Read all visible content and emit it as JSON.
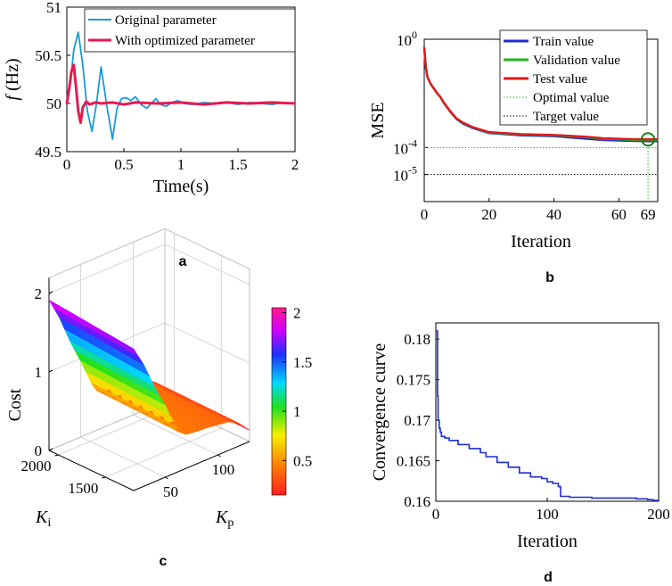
{
  "figure": {
    "panel_labels": [
      "a",
      "b",
      "c",
      "d"
    ]
  },
  "chart_data": [
    {
      "id": "a",
      "type": "line",
      "xlabel": "Time(s)",
      "ylabel_symbol": "f",
      "ylabel_unit": "(Hz)",
      "xlim": [
        0,
        2
      ],
      "ylim": [
        49.5,
        51
      ],
      "xticks": [
        "0",
        "0.5",
        "1",
        "1.5",
        "2"
      ],
      "yticks": [
        "49.5",
        "50",
        "50.5",
        "51"
      ],
      "legend": [
        "Original parameter",
        "With optimized parameter"
      ],
      "series": [
        {
          "name": "Original parameter",
          "color": "#1a9ad6",
          "x": [
            0,
            0.03,
            0.06,
            0.1,
            0.14,
            0.18,
            0.22,
            0.26,
            0.3,
            0.35,
            0.4,
            0.44,
            0.48,
            0.52,
            0.56,
            0.6,
            0.65,
            0.7,
            0.74,
            0.78,
            0.82,
            0.87,
            0.92,
            0.97,
            1.02,
            1.1,
            1.2,
            1.3,
            1.4,
            1.5,
            1.6,
            1.7,
            1.8,
            1.9,
            2.0
          ],
          "values": [
            50.0,
            50.2,
            50.55,
            50.74,
            50.4,
            49.92,
            49.71,
            50.0,
            50.38,
            49.98,
            49.63,
            49.95,
            50.05,
            50.06,
            50.03,
            50.07,
            49.99,
            49.95,
            50.0,
            50.05,
            49.99,
            49.97,
            50.01,
            50.03,
            50.0,
            49.99,
            50.01,
            50.0,
            50.01,
            49.99,
            50.01,
            50.0,
            49.99,
            50.01,
            50.0
          ]
        },
        {
          "name": "With optimized parameter",
          "color": "#e8194f",
          "x": [
            0,
            0.02,
            0.04,
            0.06,
            0.08,
            0.1,
            0.12,
            0.14,
            0.17,
            0.2,
            0.25,
            0.3,
            0.4,
            0.5,
            0.6,
            0.8,
            1.0,
            1.2,
            1.4,
            1.6,
            1.8,
            2.0
          ],
          "values": [
            50.0,
            50.15,
            50.33,
            50.4,
            50.18,
            49.92,
            49.8,
            49.96,
            50.02,
            49.99,
            50.01,
            50.0,
            50.01,
            49.99,
            50.01,
            50.0,
            50.01,
            49.99,
            50.01,
            50.0,
            50.01,
            50.0
          ]
        }
      ]
    },
    {
      "id": "b",
      "type": "line",
      "yscale": "log",
      "xlabel": "Iteration",
      "ylabel": "MSE",
      "xlim": [
        0,
        72
      ],
      "ylim": [
        1e-06,
        1
      ],
      "xticks": [
        "0",
        "20",
        "40",
        "60"
      ],
      "yticks": [
        {
          "base": "10",
          "exp": "0"
        },
        {
          "base": "10",
          "exp": "-4"
        },
        {
          "base": "10",
          "exp": "-5"
        }
      ],
      "best_epoch_label": "69",
      "best_epoch": 69,
      "best_value": 0.0001,
      "target_value": 1e-05,
      "legend": [
        "Train value",
        "Validation value",
        "Test value",
        "Optimal value",
        "Target value"
      ],
      "series": [
        {
          "name": "Train value",
          "color": "#1f2ecf",
          "x": [
            0,
            0.5,
            1,
            2,
            3,
            4,
            5,
            6,
            8,
            10,
            12,
            15,
            20,
            30,
            40,
            50,
            55,
            60,
            65,
            69,
            72
          ],
          "values": [
            0.5,
            0.09,
            0.04,
            0.022,
            0.015,
            0.01,
            0.0072,
            0.0045,
            0.0021,
            0.0011,
            0.00075,
            0.00052,
            0.00034,
            0.00028,
            0.00026,
            0.00021,
            0.00019,
            0.00018,
            0.000175,
            0.00017,
            0.00017
          ]
        },
        {
          "name": "Validation value",
          "color": "#22b322",
          "x": [
            0,
            0.5,
            1,
            2,
            3,
            4,
            5,
            6,
            8,
            10,
            12,
            15,
            20,
            30,
            40,
            50,
            55,
            60,
            65,
            69,
            72
          ],
          "values": [
            0.5,
            0.09,
            0.04,
            0.022,
            0.015,
            0.01,
            0.0073,
            0.0046,
            0.0022,
            0.00115,
            0.0008,
            0.00055,
            0.00036,
            0.0003,
            0.00028,
            0.00024,
            0.00021,
            0.0002,
            0.00019,
            0.00019,
            0.00019
          ]
        },
        {
          "name": "Test value",
          "color": "#e01a1a",
          "x": [
            0,
            0.5,
            1,
            2,
            3,
            4,
            5,
            6,
            8,
            10,
            12,
            15,
            20,
            30,
            40,
            50,
            55,
            60,
            65,
            69,
            72
          ],
          "values": [
            0.5,
            0.09,
            0.04,
            0.022,
            0.015,
            0.01,
            0.0073,
            0.0046,
            0.0022,
            0.00117,
            0.00082,
            0.00056,
            0.00037,
            0.00031,
            0.00029,
            0.00025,
            0.00022,
            0.00021,
            0.0002,
            0.0002,
            0.0002
          ]
        }
      ]
    },
    {
      "id": "c",
      "type": "surface3d",
      "zlabel": "Cost",
      "xlabel_symbol": "K",
      "xlabel_sub": "p",
      "ylabel_symbol": "K",
      "ylabel_sub": "i",
      "zticks": [
        "0",
        "1",
        "2"
      ],
      "kp_ticks": [
        "50",
        "100"
      ],
      "ki_ticks": [
        "1500",
        "2000"
      ],
      "colorbar_ticks": [
        "0.5",
        "1",
        "1.5",
        "2"
      ],
      "colorbar_range": [
        0.15,
        2.05
      ],
      "kp_range": [
        20,
        130
      ],
      "ki_range": [
        1200,
        2100
      ],
      "z_range": [
        0,
        2.2
      ],
      "cost_profile": {
        "kp": [
          20,
          30,
          40,
          50,
          60,
          65,
          70,
          80,
          90,
          100,
          110,
          120,
          130
        ],
        "cost": [
          1.88,
          1.6,
          1.25,
          0.95,
          0.62,
          0.5,
          0.45,
          0.43,
          0.42,
          0.4,
          0.38,
          0.3,
          0.15
        ]
      },
      "ki_trend": {
        "ki": [
          1200,
          2100
        ],
        "factor": [
          0.96,
          1.02
        ]
      }
    },
    {
      "id": "d",
      "type": "line",
      "xlabel": "Iteration",
      "ylabel": "Convergence curve",
      "xlim": [
        0,
        200
      ],
      "ylim": [
        0.16,
        0.182
      ],
      "xticks": [
        "0",
        "100",
        "200"
      ],
      "yticks": [
        "0.16",
        "0.165",
        "0.17",
        "0.175",
        "0.18"
      ],
      "series": [
        {
          "name": "Convergence",
          "color": "#1f2ecf",
          "x": [
            0,
            1,
            1.5,
            2,
            3,
            4,
            5,
            8,
            12,
            20,
            30,
            40,
            45,
            55,
            65,
            75,
            85,
            95,
            100,
            105,
            110,
            112,
            120,
            140,
            160,
            180,
            190,
            195,
            200
          ],
          "values": [
            0.181,
            0.181,
            0.173,
            0.17,
            0.169,
            0.1685,
            0.168,
            0.1678,
            0.1675,
            0.167,
            0.1665,
            0.166,
            0.1655,
            0.1648,
            0.1642,
            0.1635,
            0.163,
            0.1628,
            0.1624,
            0.1622,
            0.1618,
            0.1606,
            0.1605,
            0.1604,
            0.1604,
            0.1603,
            0.1602,
            0.1601,
            0.1601
          ]
        }
      ]
    }
  ]
}
